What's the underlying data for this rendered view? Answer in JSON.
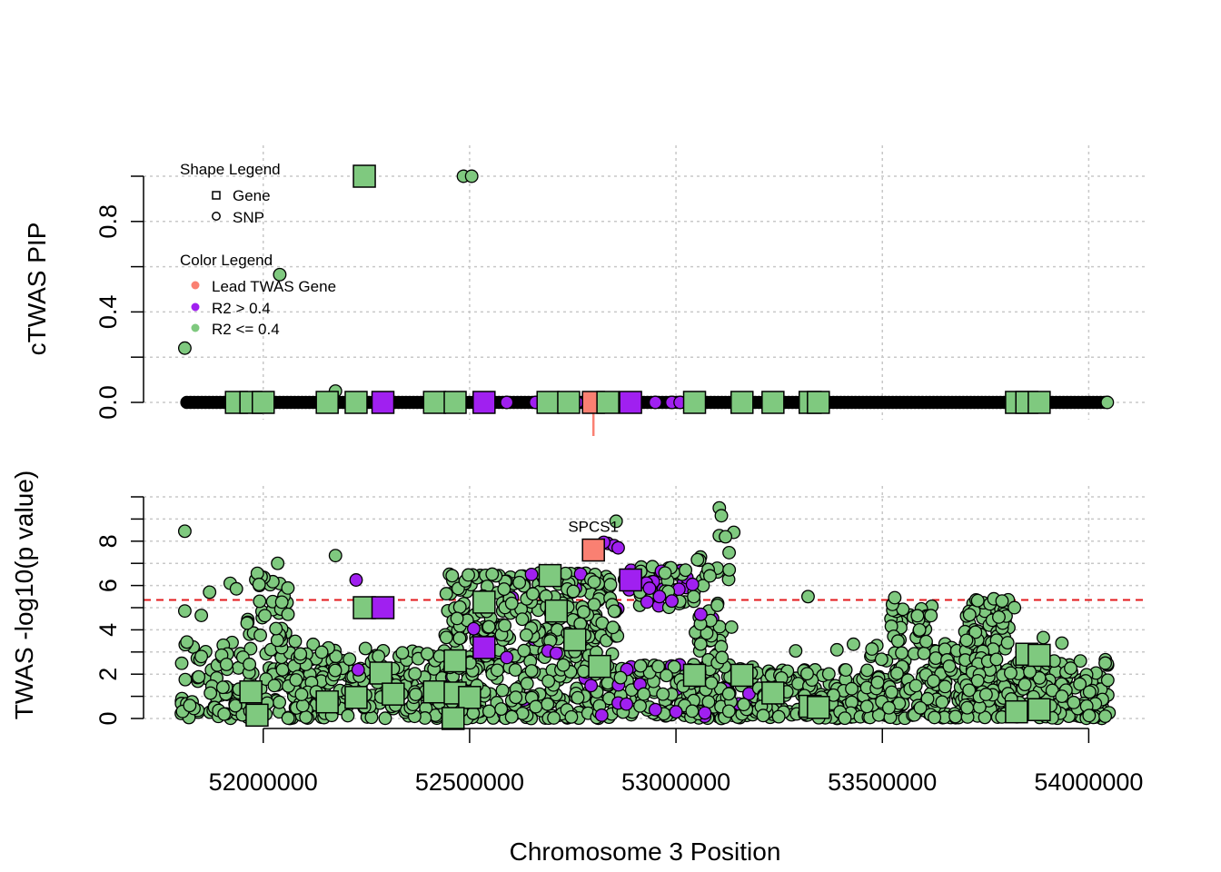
{
  "chart_data": {
    "type": "scatter",
    "xlabel": "Chromosome 3 Position",
    "x_ticks": [
      52000000,
      52500000,
      53000000,
      53500000,
      54000000
    ],
    "x_tick_labels": [
      "52000000",
      "52500000",
      "53000000",
      "53500000",
      "54000000"
    ],
    "xlim": [
      51710000,
      54140000
    ],
    "colors": {
      "lead": "#fa8072",
      "high_r2": "#a020f0",
      "low_r2": "#7fc97f",
      "threshold": "#e31a1c",
      "grid": "#c8c8c8"
    },
    "legend": {
      "shape_title": "Shape Legend",
      "shapes": [
        {
          "label": "Gene",
          "shape": "square"
        },
        {
          "label": "SNP",
          "shape": "circle"
        }
      ],
      "color_title": "Color Legend",
      "colors": [
        {
          "label": "Lead TWAS Gene",
          "group": "lead"
        },
        {
          "label": "R2 > 0.4",
          "group": "high_r2"
        },
        {
          "label": "R2 <= 0.4",
          "group": "low_r2"
        }
      ]
    },
    "lead_gene": {
      "name": "SPCS1",
      "position": 52800000
    },
    "panels": [
      {
        "id": "pip",
        "ylabel": "cTWAS PIP",
        "ylim": [
          0,
          1
        ],
        "y_ticks": [
          0,
          0.2,
          0.4,
          0.6,
          0.8,
          1.0
        ],
        "y_tick_labels": [
          "0.0",
          "",
          "0.4",
          "",
          "0.8",
          ""
        ],
        "series": [
          {
            "name": "Gene",
            "shape": "square",
            "points": [
              {
                "x": 52245000,
                "y": 1.0,
                "g": "low_r2"
              },
              {
                "x": 51935000,
                "y": 0,
                "g": "low_r2"
              },
              {
                "x": 51970000,
                "y": 0,
                "g": "low_r2"
              },
              {
                "x": 52000000,
                "y": 0,
                "g": "low_r2"
              },
              {
                "x": 52155000,
                "y": 0,
                "g": "low_r2"
              },
              {
                "x": 52225000,
                "y": 0,
                "g": "low_r2"
              },
              {
                "x": 52290000,
                "y": 0,
                "g": "high_r2"
              },
              {
                "x": 52415000,
                "y": 0,
                "g": "low_r2"
              },
              {
                "x": 52465000,
                "y": 0,
                "g": "low_r2"
              },
              {
                "x": 52535000,
                "y": 0,
                "g": "high_r2"
              },
              {
                "x": 52690000,
                "y": 0,
                "g": "low_r2"
              },
              {
                "x": 52740000,
                "y": 0,
                "g": "low_r2"
              },
              {
                "x": 52800000,
                "y": 0,
                "g": "lead"
              },
              {
                "x": 52835000,
                "y": 0,
                "g": "low_r2"
              },
              {
                "x": 52890000,
                "y": 0,
                "g": "high_r2"
              },
              {
                "x": 53045000,
                "y": 0,
                "g": "low_r2"
              },
              {
                "x": 53160000,
                "y": 0,
                "g": "low_r2"
              },
              {
                "x": 53235000,
                "y": 0,
                "g": "low_r2"
              },
              {
                "x": 53325000,
                "y": 0,
                "g": "low_r2"
              },
              {
                "x": 53345000,
                "y": 0,
                "g": "low_r2"
              },
              {
                "x": 53825000,
                "y": 0,
                "g": "low_r2"
              },
              {
                "x": 53850000,
                "y": 0,
                "g": "low_r2"
              },
              {
                "x": 53880000,
                "y": 0,
                "g": "low_r2"
              }
            ]
          },
          {
            "name": "SNP",
            "shape": "circle",
            "points": [
              {
                "x": 52485000,
                "y": 1.0,
                "g": "low_r2"
              },
              {
                "x": 52505000,
                "y": 1.0,
                "g": "low_r2"
              },
              {
                "x": 52040000,
                "y": 0.565,
                "g": "low_r2"
              },
              {
                "x": 51810000,
                "y": 0.24,
                "g": "low_r2"
              },
              {
                "x": 52175000,
                "y": 0.05,
                "g": "low_r2"
              },
              {
                "x": 52590000,
                "y": 0,
                "g": "high_r2"
              },
              {
                "x": 52660000,
                "y": 0,
                "g": "high_r2"
              },
              {
                "x": 52760000,
                "y": 0,
                "g": "high_r2"
              },
              {
                "x": 52950000,
                "y": 0,
                "g": "high_r2"
              },
              {
                "x": 52990000,
                "y": 0,
                "g": "high_r2"
              },
              {
                "x": 53010000,
                "y": 0,
                "g": "high_r2"
              },
              {
                "x": 54045000,
                "y": 0,
                "g": "low_r2"
              }
            ]
          }
        ]
      },
      {
        "id": "twas",
        "ylabel": "TWAS -log10(p value)",
        "ylim": [
          0,
          10
        ],
        "y_ticks": [
          0,
          1,
          2,
          3,
          4,
          5,
          6,
          7,
          8,
          9,
          10
        ],
        "y_tick_labels": [
          "0",
          "",
          "2",
          "",
          "4",
          "",
          "6",
          "",
          "8",
          "",
          ""
        ],
        "threshold": 5.35,
        "series": [
          {
            "name": "Gene",
            "shape": "square",
            "points": [
              {
                "x": 52800000,
                "y": 7.6,
                "g": "lead",
                "label": "SPCS1"
              },
              {
                "x": 52890000,
                "y": 6.25,
                "g": "high_r2"
              },
              {
                "x": 52695000,
                "y": 6.45,
                "g": "low_r2"
              },
              {
                "x": 52535000,
                "y": 5.25,
                "g": "low_r2"
              },
              {
                "x": 52245000,
                "y": 5.0,
                "g": "low_r2"
              },
              {
                "x": 52290000,
                "y": 5.0,
                "g": "high_r2"
              },
              {
                "x": 52710000,
                "y": 4.85,
                "g": "low_r2"
              },
              {
                "x": 52755000,
                "y": 3.55,
                "g": "low_r2"
              },
              {
                "x": 52535000,
                "y": 3.2,
                "g": "high_r2"
              },
              {
                "x": 52465000,
                "y": 2.6,
                "g": "low_r2"
              },
              {
                "x": 52815000,
                "y": 2.35,
                "g": "low_r2"
              },
              {
                "x": 52285000,
                "y": 2.05,
                "g": "low_r2"
              },
              {
                "x": 53045000,
                "y": 1.95,
                "g": "low_r2"
              },
              {
                "x": 53160000,
                "y": 1.95,
                "g": "low_r2"
              },
              {
                "x": 51970000,
                "y": 1.2,
                "g": "low_r2"
              },
              {
                "x": 52415000,
                "y": 1.2,
                "g": "low_r2"
              },
              {
                "x": 52465000,
                "y": 1.15,
                "g": "low_r2"
              },
              {
                "x": 52315000,
                "y": 1.1,
                "g": "low_r2"
              },
              {
                "x": 53235000,
                "y": 1.15,
                "g": "low_r2"
              },
              {
                "x": 52225000,
                "y": 0.95,
                "g": "low_r2"
              },
              {
                "x": 52500000,
                "y": 0.95,
                "g": "low_r2"
              },
              {
                "x": 52155000,
                "y": 0.75,
                "g": "low_r2"
              },
              {
                "x": 53325000,
                "y": 0.55,
                "g": "low_r2"
              },
              {
                "x": 53345000,
                "y": 0.5,
                "g": "low_r2"
              },
              {
                "x": 53850000,
                "y": 2.9,
                "g": "low_r2"
              },
              {
                "x": 53880000,
                "y": 2.85,
                "g": "low_r2"
              },
              {
                "x": 53825000,
                "y": 0.3,
                "g": "low_r2"
              },
              {
                "x": 53880000,
                "y": 0.4,
                "g": "low_r2"
              },
              {
                "x": 51985000,
                "y": 0.15,
                "g": "low_r2"
              },
              {
                "x": 52460000,
                "y": 0.0,
                "g": "low_r2"
              }
            ]
          },
          {
            "name": "SNP",
            "shape": "circle",
            "points": [
              {
                "x": 51810000,
                "y": 8.45,
                "g": "low_r2"
              },
              {
                "x": 52175000,
                "y": 7.35,
                "g": "low_r2"
              },
              {
                "x": 52035000,
                "y": 7.0,
                "g": "low_r2"
              },
              {
                "x": 52855000,
                "y": 8.9,
                "g": "low_r2"
              },
              {
                "x": 53105000,
                "y": 9.5,
                "g": "low_r2"
              },
              {
                "x": 53110000,
                "y": 9.15,
                "g": "low_r2"
              },
              {
                "x": 53140000,
                "y": 8.4,
                "g": "low_r2"
              },
              {
                "x": 53105000,
                "y": 8.25,
                "g": "low_r2"
              },
              {
                "x": 53120000,
                "y": 8.2,
                "g": "low_r2"
              },
              {
                "x": 52835000,
                "y": 7.9,
                "g": "high_r2"
              },
              {
                "x": 52850000,
                "y": 7.8,
                "g": "high_r2"
              },
              {
                "x": 52860000,
                "y": 7.7,
                "g": "high_r2"
              },
              {
                "x": 52825000,
                "y": 7.95,
                "g": "high_r2"
              },
              {
                "x": 52225000,
                "y": 6.25,
                "g": "high_r2"
              },
              {
                "x": 52650000,
                "y": 6.5,
                "g": "high_r2"
              },
              {
                "x": 53040000,
                "y": 6.05,
                "g": "high_r2"
              },
              {
                "x": 52960000,
                "y": 5.5,
                "g": "high_r2"
              },
              {
                "x": 52990000,
                "y": 5.3,
                "g": "high_r2"
              },
              {
                "x": 53060000,
                "y": 4.7,
                "g": "high_r2"
              },
              {
                "x": 52510000,
                "y": 4.05,
                "g": "high_r2"
              },
              {
                "x": 52690000,
                "y": 3.05,
                "g": "high_r2"
              },
              {
                "x": 52710000,
                "y": 2.95,
                "g": "high_r2"
              },
              {
                "x": 52590000,
                "y": 2.75,
                "g": "high_r2"
              },
              {
                "x": 52230000,
                "y": 2.2,
                "g": "high_r2"
              },
              {
                "x": 52860000,
                "y": 0.7,
                "g": "high_r2"
              },
              {
                "x": 52950000,
                "y": 0.4,
                "g": "high_r2"
              },
              {
                "x": 53000000,
                "y": 0.3,
                "g": "high_r2"
              },
              {
                "x": 53070000,
                "y": 0.25,
                "g": "high_r2"
              },
              {
                "x": 52820000,
                "y": 0.15,
                "g": "high_r2"
              },
              {
                "x": 52880000,
                "y": 0.65,
                "g": "high_r2"
              },
              {
                "x": 53320000,
                "y": 5.5,
                "g": "low_r2"
              },
              {
                "x": 53530000,
                "y": 5.45,
                "g": "low_r2"
              },
              {
                "x": 53770000,
                "y": 5.4,
                "g": "low_r2"
              },
              {
                "x": 53790000,
                "y": 5.3,
                "g": "low_r2"
              },
              {
                "x": 53820000,
                "y": 5.0,
                "g": "low_r2"
              },
              {
                "x": 51870000,
                "y": 5.7,
                "g": "low_r2"
              },
              {
                "x": 51920000,
                "y": 6.1,
                "g": "low_r2"
              },
              {
                "x": 51990000,
                "y": 6.05,
                "g": "low_r2"
              },
              {
                "x": 51935000,
                "y": 5.85,
                "g": "low_r2"
              },
              {
                "x": 51810000,
                "y": 4.85,
                "g": "low_r2"
              },
              {
                "x": 51850000,
                "y": 4.65,
                "g": "low_r2"
              },
              {
                "x": 51815000,
                "y": 3.45,
                "g": "low_r2"
              },
              {
                "x": 52045000,
                "y": 5.25,
                "g": "low_r2"
              },
              {
                "x": 52060000,
                "y": 4.7,
                "g": "low_r2"
              },
              {
                "x": 53890000,
                "y": 3.65,
                "g": "low_r2"
              },
              {
                "x": 53935000,
                "y": 3.4,
                "g": "low_r2"
              },
              {
                "x": 54040000,
                "y": 2.5,
                "g": "low_r2"
              },
              {
                "x": 54040000,
                "y": 0.1,
                "g": "low_r2"
              },
              {
                "x": 53430000,
                "y": 3.35,
                "g": "low_r2"
              },
              {
                "x": 53390000,
                "y": 3.1,
                "g": "low_r2"
              },
              {
                "x": 53290000,
                "y": 3.05,
                "g": "low_r2"
              },
              {
                "x": 53590000,
                "y": 4.0,
                "g": "low_r2"
              }
            ]
          }
        ],
        "snp_clusters": [
          {
            "x_range": [
              51800000,
              52150000
            ],
            "y_range": [
              0,
              3.5
            ],
            "count": 160,
            "high_r2_share": 0
          },
          {
            "x_range": [
              51960000,
              52060000
            ],
            "y_range": [
              3.5,
              6.8
            ],
            "count": 35,
            "high_r2_share": 0
          },
          {
            "x_range": [
              52060000,
              52450000
            ],
            "y_range": [
              0,
              3.2
            ],
            "count": 180,
            "high_r2_share": 0
          },
          {
            "x_range": [
              52450000,
              52860000
            ],
            "y_range": [
              0,
              3.2
            ],
            "count": 220,
            "high_r2_share": 0.03
          },
          {
            "x_range": [
              52440000,
              52860000
            ],
            "y_range": [
              3.5,
              6.6
            ],
            "count": 230,
            "high_r2_share": 0.04
          },
          {
            "x_range": [
              52870000,
              53030000
            ],
            "y_range": [
              5.0,
              6.9
            ],
            "count": 55,
            "high_r2_share": 0.35
          },
          {
            "x_range": [
              52860000,
              53200000
            ],
            "y_range": [
              0,
              2.5
            ],
            "count": 170,
            "high_r2_share": 0.06
          },
          {
            "x_range": [
              53040000,
              53140000
            ],
            "y_range": [
              2.5,
              7.5
            ],
            "count": 45,
            "high_r2_share": 0.05
          },
          {
            "x_range": [
              53200000,
              53460000
            ],
            "y_range": [
              0,
              2.2
            ],
            "count": 140,
            "high_r2_share": 0
          },
          {
            "x_range": [
              53460000,
              53700000
            ],
            "y_range": [
              0,
              3.4
            ],
            "count": 150,
            "high_r2_share": 0
          },
          {
            "x_range": [
              53520000,
              53620000
            ],
            "y_range": [
              3.4,
              5.2
            ],
            "count": 30,
            "high_r2_share": 0
          },
          {
            "x_range": [
              53700000,
              53810000
            ],
            "y_range": [
              2.8,
              5.4
            ],
            "count": 70,
            "high_r2_share": 0
          },
          {
            "x_range": [
              53700000,
              54050000
            ],
            "y_range": [
              0,
              2.8
            ],
            "count": 220,
            "high_r2_share": 0
          }
        ]
      }
    ]
  }
}
